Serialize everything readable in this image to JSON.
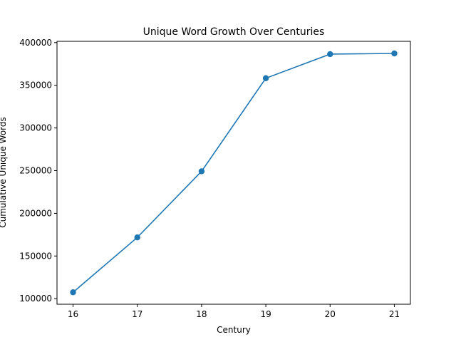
{
  "chart_data": {
    "type": "line",
    "title": "Unique Word Growth Over Centuries",
    "xlabel": "Century",
    "ylabel": "Cumulative Unique Words",
    "x": [
      16,
      17,
      18,
      19,
      20,
      21
    ],
    "series": [
      {
        "values": [
          107500,
          171800,
          249200,
          358300,
          386500,
          387300
        ],
        "color": "#1f77b4",
        "marker": "circle"
      }
    ],
    "xlim": [
      15.75,
      21.25
    ],
    "ylim": [
      93500,
      401500
    ],
    "xticks": [
      "16",
      "17",
      "18",
      "19",
      "20",
      "21"
    ],
    "yticks": [
      "100000",
      "150000",
      "200000",
      "250000",
      "300000",
      "350000",
      "400000"
    ],
    "grid": false,
    "legend": false
  }
}
